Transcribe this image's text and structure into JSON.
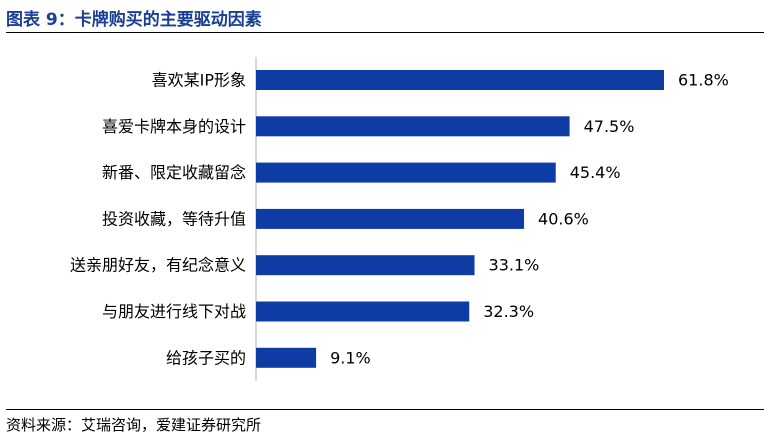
{
  "header": {
    "title": "图表 9：卡牌购买的主要驱动因素"
  },
  "footer": {
    "source": "资料来源：艾瑞咨询，爱建证券研究所"
  },
  "colors": {
    "bar": "#0f3ba5",
    "title": "#1b3f94"
  },
  "chart_data": {
    "type": "bar",
    "orientation": "horizontal",
    "categories": [
      "喜欢某IP形象",
      "喜爱卡牌本身的设计",
      "新番、限定收藏留念",
      "投资收藏，等待升值",
      "送亲朋好友，有纪念意义",
      "与朋友进行线下对战",
      "给孩子买的"
    ],
    "values": [
      61.8,
      47.5,
      45.4,
      40.6,
      33.1,
      32.3,
      9.1
    ],
    "value_labels": [
      "61.8%",
      "47.5%",
      "45.4%",
      "40.6%",
      "33.1%",
      "32.3%",
      "9.1%"
    ],
    "unit": "%",
    "xlim": [
      0,
      70
    ],
    "grid": false,
    "legend": "none"
  }
}
